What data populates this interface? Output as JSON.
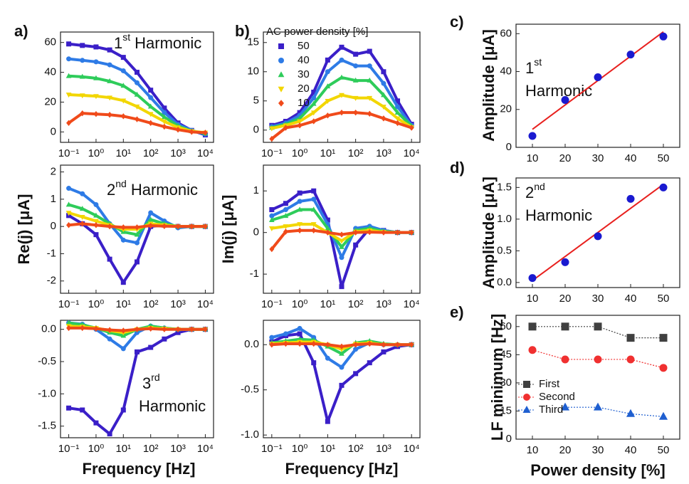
{
  "chart_data": [
    {
      "type": "line",
      "panel": "a)",
      "xscale": "log",
      "xlim": [
        0.05,
        20000
      ],
      "ylim": [
        -7,
        67
      ],
      "yticks": [
        0,
        20,
        40,
        60
      ],
      "xticks": [
        {
          "value": 0.1,
          "label": "10⁻¹"
        },
        {
          "value": 1,
          "label": "10⁰"
        },
        {
          "value": 10,
          "label": "10¹"
        },
        {
          "value": 100,
          "label": "10²"
        },
        {
          "value": 1000,
          "label": "10³"
        },
        {
          "value": 10000,
          "label": "10⁴"
        }
      ],
      "annotation": {
        "number": "1",
        "suffix": "st",
        "word": "Harmonic"
      },
      "x": [
        0.1,
        0.316,
        1,
        3.16,
        10,
        31.6,
        100,
        316,
        1000,
        3162,
        10000
      ],
      "series": [
        {
          "color": "#3a1fc8",
          "marker": "square",
          "values": [
            59,
            58,
            57,
            55,
            50,
            40,
            28,
            16,
            6,
            1,
            -2
          ]
        },
        {
          "color": "#2e7be6",
          "marker": "circle",
          "values": [
            49,
            48,
            47,
            45,
            41,
            33,
            23,
            13,
            5,
            1,
            -1.5
          ]
        },
        {
          "color": "#2ecc5a",
          "marker": "triangle-up",
          "values": [
            37.5,
            37,
            36,
            34,
            31,
            25,
            17,
            10,
            4,
            0.5,
            -1
          ]
        },
        {
          "color": "#f2d600",
          "marker": "triangle-down",
          "values": [
            25,
            24.5,
            24,
            23,
            21,
            17,
            12,
            7,
            3,
            0.5,
            -0.5
          ]
        },
        {
          "color": "#f04a1a",
          "marker": "diamond",
          "values": [
            6,
            12.5,
            12,
            11.5,
            10.5,
            8.5,
            6,
            3.5,
            1.5,
            0,
            -0.5
          ]
        }
      ]
    },
    {
      "type": "line",
      "xscale": "log",
      "xlim": [
        0.05,
        20000
      ],
      "ylim": [
        -2.45,
        2.25
      ],
      "yticks": [
        -2,
        -1,
        0,
        1,
        2
      ],
      "ylabel": "Re(j) [μA]",
      "xticks": [
        {
          "value": 0.1,
          "label": "10⁻¹"
        },
        {
          "value": 1,
          "label": "10⁰"
        },
        {
          "value": 10,
          "label": "10¹"
        },
        {
          "value": 100,
          "label": "10²"
        },
        {
          "value": 1000,
          "label": "10³"
        },
        {
          "value": 10000,
          "label": "10⁴"
        }
      ],
      "annotation": {
        "number": "2",
        "suffix": "nd",
        "word": "Harmonic"
      },
      "x": [
        0.1,
        0.316,
        1,
        3.16,
        10,
        31.6,
        100,
        316,
        1000,
        3162,
        10000
      ],
      "series": [
        {
          "color": "#3a1fc8",
          "marker": "square",
          "values": [
            0.4,
            0.1,
            -0.3,
            -1.2,
            -2.05,
            -1.3,
            0.0,
            0.05,
            0.0,
            0.0,
            0.0
          ]
        },
        {
          "color": "#2e7be6",
          "marker": "circle",
          "values": [
            1.4,
            1.2,
            0.8,
            0.1,
            -0.5,
            -0.6,
            0.5,
            0.2,
            -0.05,
            0,
            0
          ]
        },
        {
          "color": "#2ecc5a",
          "marker": "triangle-up",
          "values": [
            0.8,
            0.65,
            0.4,
            0.1,
            -0.2,
            -0.3,
            0.25,
            0.1,
            0,
            0,
            0
          ]
        },
        {
          "color": "#f2d600",
          "marker": "triangle-down",
          "values": [
            0.5,
            0.35,
            0.2,
            0.05,
            -0.1,
            -0.1,
            0.1,
            0.05,
            0,
            0,
            0
          ]
        },
        {
          "color": "#f04a1a",
          "marker": "diamond",
          "values": [
            0.05,
            0.1,
            0.05,
            0.0,
            -0.03,
            -0.03,
            0.03,
            0.01,
            0,
            0,
            0
          ]
        }
      ]
    },
    {
      "type": "line",
      "xscale": "log",
      "xlim": [
        0.05,
        20000
      ],
      "ylim": [
        -1.68,
        0.14
      ],
      "yticks": [
        {
          "value": 0,
          "label": "0.0"
        },
        -0.5,
        {
          "value": -1,
          "label": "-1.0"
        },
        -1.5
      ],
      "xlabel": "Frequency [Hz]",
      "xticks": [
        {
          "value": 0.1,
          "label": "10⁻¹"
        },
        {
          "value": 1,
          "label": "10⁰"
        },
        {
          "value": 10,
          "label": "10¹"
        },
        {
          "value": 100,
          "label": "10²"
        },
        {
          "value": 1000,
          "label": "10³"
        },
        {
          "value": 10000,
          "label": "10⁴"
        }
      ],
      "annotation": {
        "number": "3",
        "suffix": "rd",
        "word": "Harmonic"
      },
      "x": [
        0.1,
        0.316,
        1,
        3.16,
        10,
        31.6,
        100,
        316,
        1000,
        3162,
        10000
      ],
      "series": [
        {
          "color": "#3a1fc8",
          "marker": "square",
          "values": [
            -1.22,
            -1.25,
            -1.45,
            -1.62,
            -1.25,
            -0.35,
            -0.28,
            -0.15,
            -0.05,
            0.0,
            0.0
          ]
        },
        {
          "color": "#2e7be6",
          "marker": "circle",
          "values": [
            0.1,
            0.08,
            0.0,
            -0.15,
            -0.3,
            -0.05,
            0.05,
            0.02,
            0,
            0,
            0
          ]
        },
        {
          "color": "#2ecc5a",
          "marker": "triangle-up",
          "values": [
            0.1,
            0.07,
            0.02,
            -0.05,
            -0.1,
            0.0,
            0.05,
            0.02,
            0,
            0,
            0
          ]
        },
        {
          "color": "#f2d600",
          "marker": "triangle-down",
          "values": [
            0.05,
            0.04,
            0.02,
            -0.02,
            -0.05,
            0.0,
            0.02,
            0.01,
            0,
            0,
            0
          ]
        },
        {
          "color": "#f04a1a",
          "marker": "diamond",
          "values": [
            0.02,
            0.02,
            0.01,
            -0.01,
            -0.02,
            0,
            0.01,
            0,
            0,
            0,
            0
          ]
        }
      ]
    },
    {
      "type": "line",
      "panel": "b)",
      "xscale": "log",
      "xlim": [
        0.05,
        20000
      ],
      "ylim": [
        -2.1,
        16.8
      ],
      "yticks": [
        0,
        5,
        10,
        15
      ],
      "legend_title": "AC power density [%]",
      "legend": "upper left",
      "xticks": [
        {
          "value": 0.1,
          "label": "10⁻¹"
        },
        {
          "value": 1,
          "label": "10⁰"
        },
        {
          "value": 10,
          "label": "10¹"
        },
        {
          "value": 100,
          "label": "10²"
        },
        {
          "value": 1000,
          "label": "10³"
        },
        {
          "value": 10000,
          "label": "10⁴"
        }
      ],
      "x": [
        0.1,
        0.316,
        1,
        3.16,
        10,
        31.6,
        100,
        316,
        1000,
        3162,
        10000
      ],
      "series": [
        {
          "name": "50",
          "color": "#3a1fc8",
          "marker": "square",
          "values": [
            0.8,
            1.5,
            3,
            6.5,
            12,
            14.2,
            13,
            13.5,
            10,
            5,
            1
          ]
        },
        {
          "name": "40",
          "color": "#2e7be6",
          "marker": "circle",
          "values": [
            0.6,
            1.2,
            2.5,
            5.5,
            10,
            12,
            11,
            11,
            8,
            4,
            0.8
          ]
        },
        {
          "name": "30",
          "color": "#2ecc5a",
          "marker": "triangle-up",
          "values": [
            0.4,
            1,
            2,
            4.5,
            7.5,
            9,
            8.5,
            8.5,
            6,
            3,
            0.7
          ]
        },
        {
          "name": "20",
          "color": "#f2d600",
          "marker": "triangle-down",
          "values": [
            0.3,
            0.8,
            1.5,
            3,
            5,
            6,
            5.5,
            5.5,
            4,
            2,
            0.5
          ]
        },
        {
          "name": "10",
          "color": "#f04a1a",
          "marker": "diamond",
          "values": [
            -1.5,
            0.4,
            0.8,
            1.5,
            2.5,
            3,
            3,
            2.8,
            2,
            1.2,
            0.4
          ]
        }
      ]
    },
    {
      "type": "line",
      "xscale": "log",
      "xlim": [
        0.05,
        20000
      ],
      "ylim": [
        -1.46,
        1.62
      ],
      "yticks": [
        -1,
        0,
        1
      ],
      "ylabel": "Im(j) [μA]",
      "xticks": [
        {
          "value": 0.1,
          "label": "10⁻¹"
        },
        {
          "value": 1,
          "label": "10⁰"
        },
        {
          "value": 10,
          "label": "10¹"
        },
        {
          "value": 100,
          "label": "10²"
        },
        {
          "value": 1000,
          "label": "10³"
        },
        {
          "value": 10000,
          "label": "10⁴"
        }
      ],
      "x": [
        0.1,
        0.316,
        1,
        3.16,
        10,
        31.6,
        100,
        316,
        1000,
        3162,
        10000
      ],
      "series": [
        {
          "color": "#3a1fc8",
          "marker": "square",
          "values": [
            0.55,
            0.7,
            0.95,
            1.0,
            0.3,
            -1.3,
            -0.3,
            0.1,
            0.05,
            0,
            0
          ]
        },
        {
          "color": "#2e7be6",
          "marker": "circle",
          "values": [
            0.4,
            0.55,
            0.75,
            0.8,
            0.2,
            -0.6,
            0.1,
            0.15,
            0.05,
            0,
            0
          ]
        },
        {
          "color": "#2ecc5a",
          "marker": "triangle-up",
          "values": [
            0.3,
            0.4,
            0.55,
            0.55,
            0.1,
            -0.35,
            0.05,
            0.1,
            0.03,
            0,
            0
          ]
        },
        {
          "color": "#f2d600",
          "marker": "triangle-down",
          "values": [
            0.1,
            0.15,
            0.2,
            0.2,
            0.0,
            -0.2,
            0.02,
            0.05,
            0.01,
            0,
            0
          ]
        },
        {
          "color": "#f04a1a",
          "marker": "diamond",
          "values": [
            -0.4,
            0.02,
            0.05,
            0.05,
            0.0,
            -0.05,
            0,
            0.01,
            0,
            0,
            0
          ]
        }
      ]
    },
    {
      "type": "line",
      "xscale": "log",
      "xlim": [
        0.05,
        20000
      ],
      "ylim": [
        -1.03,
        0.27
      ],
      "yticks": [
        {
          "value": 0,
          "label": "0.0"
        },
        -0.5,
        {
          "value": -1,
          "label": "-1.0"
        }
      ],
      "xlabel": "Frequency [Hz]",
      "xticks": [
        {
          "value": 0.1,
          "label": "10⁻¹"
        },
        {
          "value": 1,
          "label": "10⁰"
        },
        {
          "value": 10,
          "label": "10¹"
        },
        {
          "value": 100,
          "label": "10²"
        },
        {
          "value": 1000,
          "label": "10³"
        },
        {
          "value": 10000,
          "label": "10⁴"
        }
      ],
      "x": [
        0.1,
        0.316,
        1,
        3.16,
        10,
        31.6,
        100,
        316,
        1000,
        3162,
        10000
      ],
      "series": [
        {
          "color": "#3a1fc8",
          "marker": "square",
          "values": [
            0.03,
            0.1,
            0.12,
            -0.2,
            -0.85,
            -0.45,
            -0.32,
            -0.2,
            -0.08,
            -0.02,
            0
          ]
        },
        {
          "color": "#2e7be6",
          "marker": "circle",
          "values": [
            0.08,
            0.12,
            0.18,
            0.08,
            -0.15,
            -0.25,
            -0.05,
            0.02,
            0,
            0,
            0
          ]
        },
        {
          "color": "#2ecc5a",
          "marker": "triangle-up",
          "values": [
            0.02,
            0.04,
            0.06,
            0.05,
            -0.02,
            -0.1,
            0.02,
            0.04,
            0.01,
            0,
            0
          ]
        },
        {
          "color": "#f2d600",
          "marker": "triangle-down",
          "values": [
            0.01,
            0.02,
            0.03,
            0.03,
            0.0,
            -0.05,
            0.01,
            0.02,
            0,
            0,
            0
          ]
        },
        {
          "color": "#f04a1a",
          "marker": "diamond",
          "values": [
            0.0,
            0.01,
            0.01,
            0.01,
            0,
            -0.02,
            0,
            0.01,
            0,
            0,
            0
          ]
        }
      ]
    },
    {
      "type": "scatter",
      "panel": "c)",
      "xlim": [
        5,
        55
      ],
      "xticks": [
        10,
        20,
        30,
        40,
        50
      ],
      "ylim": [
        0,
        65
      ],
      "yticks": [
        0,
        20,
        40,
        60
      ],
      "ylabel": "Amplitude [μA]",
      "annotation": {
        "number": "1",
        "suffix": "st",
        "word": "Harmonic"
      },
      "x": [
        10,
        20,
        30,
        40,
        50
      ],
      "series": [
        {
          "color": "#1a1ad0",
          "marker": "circle",
          "values": [
            6,
            25,
            37,
            49,
            58.5
          ]
        }
      ],
      "fit": {
        "color": "#e8201e",
        "x": [
          10,
          50
        ],
        "values": [
          9.5,
          61
        ]
      }
    },
    {
      "type": "scatter",
      "panel": "d)",
      "xlim": [
        5,
        55
      ],
      "xticks": [
        10,
        20,
        30,
        40,
        50
      ],
      "ylim": [
        -0.08,
        1.65
      ],
      "yticks": [
        {
          "value": 0,
          "label": "0.0"
        },
        0.5,
        {
          "value": 1,
          "label": "1.0"
        },
        1.5
      ],
      "ylabel": "Amplitude [μA]",
      "annotation": {
        "number": "2",
        "suffix": "nd",
        "word": "Harmonic"
      },
      "x": [
        10,
        20,
        30,
        40,
        50
      ],
      "series": [
        {
          "color": "#1a1ad0",
          "marker": "circle",
          "values": [
            0.07,
            0.32,
            0.73,
            1.32,
            1.5
          ]
        }
      ],
      "fit": {
        "color": "#e8201e",
        "x": [
          10,
          50
        ],
        "values": [
          0.03,
          1.55
        ]
      }
    },
    {
      "type": "line",
      "panel": "e)",
      "xlim": [
        5,
        55
      ],
      "xticks": [
        10,
        20,
        30,
        40,
        50
      ],
      "ylim": [
        0,
        66
      ],
      "yticks": [
        0,
        15,
        30,
        45,
        60
      ],
      "ylabel": "LF minimum [Hz]",
      "xlabel": "Power density [%]",
      "legend": "left",
      "linestyle": "dotted",
      "x": [
        10,
        20,
        30,
        40,
        50
      ],
      "series": [
        {
          "name": "First",
          "color": "#404040",
          "marker": "square",
          "values": [
            60,
            60,
            60,
            54,
            54
          ]
        },
        {
          "name": "Second",
          "color": "#f03030",
          "marker": "circle",
          "values": [
            47.5,
            42.5,
            42.5,
            42.5,
            38
          ]
        },
        {
          "name": "Third",
          "color": "#1f5fd0",
          "marker": "triangle-up",
          "values": [
            null,
            17,
            17,
            13.5,
            12
          ]
        }
      ]
    }
  ]
}
